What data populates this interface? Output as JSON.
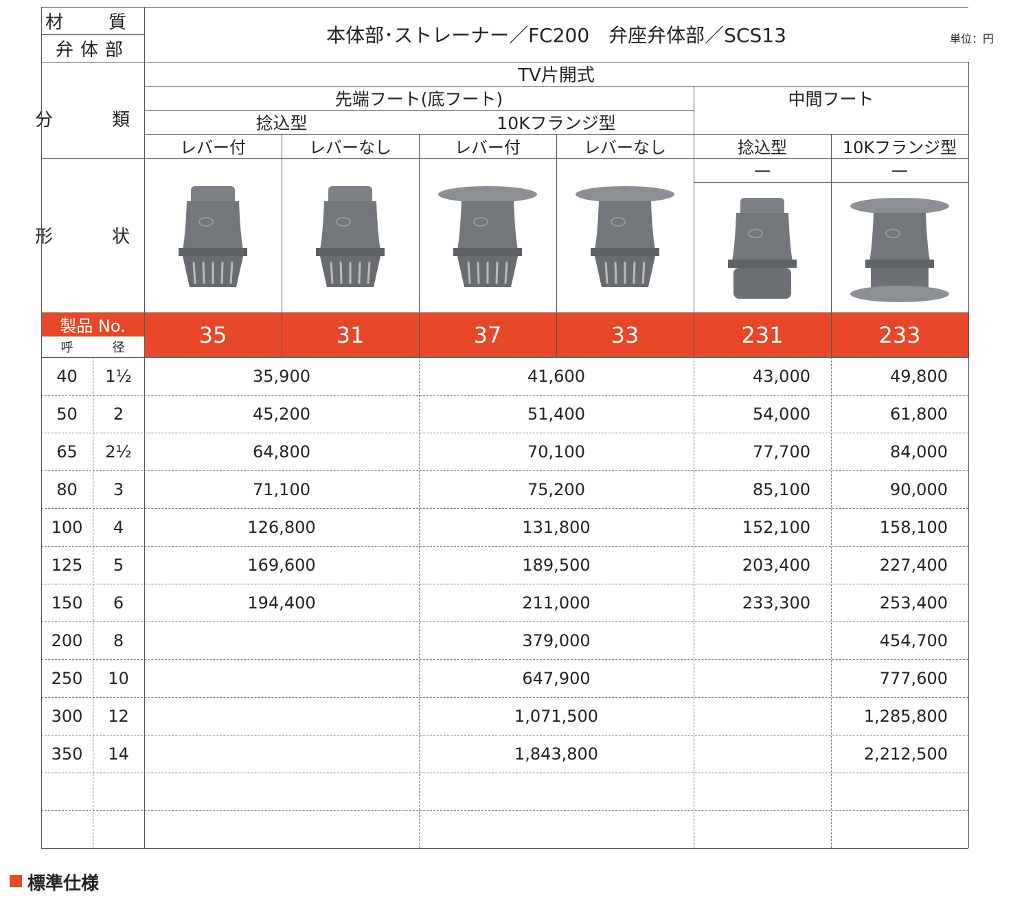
{
  "unit": "単位：円",
  "header": {
    "material_label": "材　質",
    "body_label": "弁体部",
    "material": "本体部･ストレーナー／FC200　弁座弁体部／SCS13",
    "category_label": "分　類",
    "type": "TV片開式",
    "groups": [
      {
        "label": "先端フート(底フート)",
        "subgroups": [
          {
            "label": "捻込型",
            "variants": [
              "レバー付",
              "レバーなし"
            ]
          },
          {
            "label": "10Kフランジ型",
            "variants": [
              "レバー付",
              "レバーなし"
            ]
          }
        ]
      },
      {
        "label": "中間フート",
        "subgroups": [
          {
            "label": "捻込型",
            "variants": [
              "—"
            ]
          },
          {
            "label": "10Kフランジ型",
            "variants": [
              "—"
            ]
          }
        ]
      }
    ],
    "shape_label": "形　状",
    "product_no_label": "製品 No.",
    "nominal_label": [
      "呼",
      "径"
    ]
  },
  "product_numbers": [
    "35",
    "31",
    "37",
    "33",
    "231",
    "233"
  ],
  "sizes": [
    [
      "40",
      "1½"
    ],
    [
      "50",
      "2"
    ],
    [
      "65",
      "2½"
    ],
    [
      "80",
      "3"
    ],
    [
      "100",
      "4"
    ],
    [
      "125",
      "5"
    ],
    [
      "150",
      "6"
    ],
    [
      "200",
      "8"
    ],
    [
      "250",
      "10"
    ],
    [
      "300",
      "12"
    ],
    [
      "350",
      "14"
    ]
  ],
  "price_columns": [
    [
      "35,900",
      "45,200",
      "64,800",
      "71,100",
      "126,800",
      "169,600",
      "194,400"
    ],
    [
      "41,600",
      "51,400",
      "70,100",
      "75,200",
      "131,800",
      "189,500",
      "211,000",
      "379,000",
      "647,900",
      "1,071,500",
      "1,843,800"
    ],
    [
      "43,000",
      "54,000",
      "77,700",
      "85,100",
      "152,100",
      "203,400",
      "233,300"
    ],
    [
      "49,800",
      "61,800",
      "84,000",
      "90,000",
      "158,100",
      "227,400",
      "253,400",
      "454,700",
      "777,600",
      "1,285,800",
      "2,212,500"
    ]
  ],
  "footer_heading": "標準仕様"
}
